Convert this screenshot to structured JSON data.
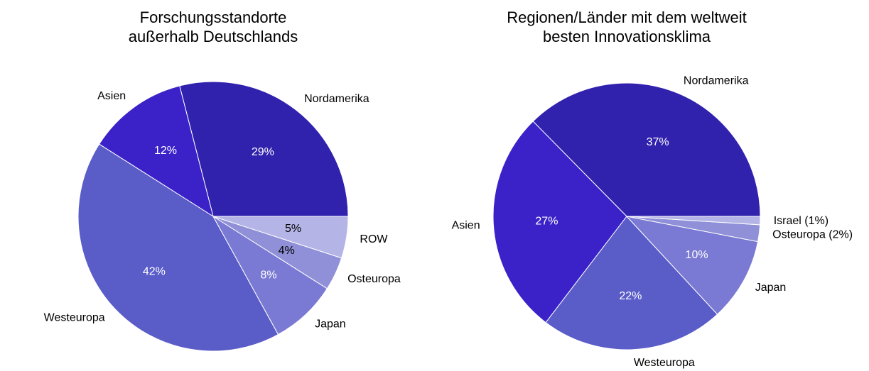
{
  "chart_data": [
    {
      "type": "pie",
      "title": [
        "Forschungsstandorte",
        "außerhalb Deutschlands"
      ],
      "categories": [
        "Nordamerika",
        "Asien",
        "Westeuropa",
        "Japan",
        "Osteuropa",
        "ROW"
      ],
      "values": [
        29,
        12,
        42,
        8,
        4,
        5
      ],
      "value_labels": [
        "29%",
        "12%",
        "42%",
        "8%",
        "4%",
        "5%"
      ],
      "colors": [
        "#3122ae",
        "#3a22c8",
        "#5a5cc8",
        "#7a7ad4",
        "#9090d8",
        "#b4b4e6"
      ],
      "value_label_colors": [
        "#ffffff",
        "#ffffff",
        "#ffffff",
        "#ffffff",
        "#000000",
        "#000000"
      ]
    },
    {
      "type": "pie",
      "title": [
        "Regionen/Länder mit dem weltweit",
        "besten Innovationsklima"
      ],
      "categories": [
        "Nordamerika",
        "Asien",
        "Westeuropa",
        "Japan",
        "Osteuropa (2%)",
        "Israel (1%)"
      ],
      "values": [
        37,
        27,
        22,
        10,
        2,
        1
      ],
      "value_labels": [
        "37%",
        "27%",
        "22%",
        "10%",
        null,
        null
      ],
      "colors": [
        "#3122ae",
        "#3a22c8",
        "#5a5cc8",
        "#7a7ad4",
        "#9090d8",
        "#b4b4e6"
      ],
      "value_label_colors": [
        "#ffffff",
        "#ffffff",
        "#ffffff",
        "#ffffff",
        "#000000",
        "#000000"
      ]
    }
  ]
}
